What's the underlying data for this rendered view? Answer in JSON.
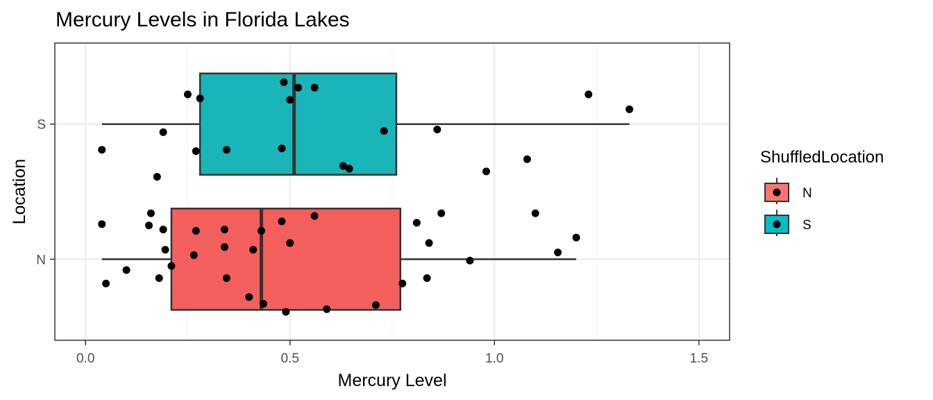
{
  "chart_data": {
    "type": "boxplot",
    "title": "Mercury Levels in Florida Lakes",
    "xlabel": "Mercury Level",
    "ylabel": "Location",
    "xlim": [
      -0.075,
      1.575
    ],
    "x_ticks": [
      "0.0",
      "0.5",
      "1.0",
      "1.5"
    ],
    "x_tick_values": [
      0,
      0.5,
      1.0,
      1.5
    ],
    "categories": [
      "N",
      "S"
    ],
    "grid": true,
    "legend": {
      "title": "ShuffledLocation",
      "placement": "right",
      "entries": [
        {
          "label": "N",
          "color": "#f8766d"
        },
        {
          "label": "S",
          "color": "#00bfc4"
        }
      ]
    },
    "boxes": [
      {
        "category": "N",
        "fill": "#f25f5c",
        "whisker_low": 0.04,
        "q1": 0.21,
        "median": 0.43,
        "q3": 0.77,
        "whisker_high": 1.2
      },
      {
        "category": "S",
        "fill": "#19b5b8",
        "whisker_low": 0.04,
        "q1": 0.28,
        "median": 0.51,
        "q3": 0.76,
        "whisker_high": 1.33
      }
    ],
    "points": [
      {
        "x": 0.05,
        "y": -0.18,
        "group": "N"
      },
      {
        "x": 0.1,
        "y": -0.08,
        "group": "N"
      },
      {
        "x": 0.04,
        "y": 0.26,
        "group": "N"
      },
      {
        "x": 0.16,
        "y": 0.34,
        "group": "N"
      },
      {
        "x": 0.155,
        "y": 0.25,
        "group": "N"
      },
      {
        "x": 0.19,
        "y": 0.22,
        "group": "N"
      },
      {
        "x": 0.195,
        "y": 0.07,
        "group": "N"
      },
      {
        "x": 0.18,
        "y": -0.14,
        "group": "N"
      },
      {
        "x": 0.21,
        "y": -0.05,
        "group": "N"
      },
      {
        "x": 0.27,
        "y": 0.21,
        "group": "N"
      },
      {
        "x": 0.265,
        "y": 0.03,
        "group": "N"
      },
      {
        "x": 0.34,
        "y": 0.22,
        "group": "N"
      },
      {
        "x": 0.34,
        "y": 0.09,
        "group": "N"
      },
      {
        "x": 0.345,
        "y": -0.14,
        "group": "N"
      },
      {
        "x": 0.41,
        "y": 0.07,
        "group": "N"
      },
      {
        "x": 0.43,
        "y": 0.21,
        "group": "N"
      },
      {
        "x": 0.4,
        "y": -0.28,
        "group": "N"
      },
      {
        "x": 0.435,
        "y": -0.33,
        "group": "N"
      },
      {
        "x": 0.48,
        "y": 0.28,
        "group": "N"
      },
      {
        "x": 0.5,
        "y": 0.12,
        "group": "N"
      },
      {
        "x": 0.49,
        "y": -0.39,
        "group": "N"
      },
      {
        "x": 0.56,
        "y": 0.32,
        "group": "N"
      },
      {
        "x": 0.59,
        "y": -0.37,
        "group": "N"
      },
      {
        "x": 0.71,
        "y": -0.34,
        "group": "N"
      },
      {
        "x": 0.775,
        "y": -0.18,
        "group": "N"
      },
      {
        "x": 0.81,
        "y": 0.27,
        "group": "N"
      },
      {
        "x": 0.84,
        "y": 0.12,
        "group": "N"
      },
      {
        "x": 0.835,
        "y": -0.14,
        "group": "N"
      },
      {
        "x": 0.87,
        "y": 0.34,
        "group": "N"
      },
      {
        "x": 0.94,
        "y": -0.01,
        "group": "N"
      },
      {
        "x": 1.1,
        "y": 0.34,
        "group": "N"
      },
      {
        "x": 1.155,
        "y": 0.05,
        "group": "N"
      },
      {
        "x": 1.2,
        "y": 0.16,
        "group": "N"
      },
      {
        "x": 0.04,
        "y": 0.81,
        "group": "S"
      },
      {
        "x": 0.175,
        "y": 0.61,
        "group": "S"
      },
      {
        "x": 0.19,
        "y": 0.94,
        "group": "S"
      },
      {
        "x": 0.25,
        "y": 1.22,
        "group": "S"
      },
      {
        "x": 0.28,
        "y": 1.19,
        "group": "S"
      },
      {
        "x": 0.27,
        "y": 0.8,
        "group": "S"
      },
      {
        "x": 0.345,
        "y": 0.81,
        "group": "S"
      },
      {
        "x": 0.48,
        "y": 0.82,
        "group": "S"
      },
      {
        "x": 0.485,
        "y": 1.31,
        "group": "S"
      },
      {
        "x": 0.5,
        "y": 1.18,
        "group": "S"
      },
      {
        "x": 0.52,
        "y": 1.27,
        "group": "S"
      },
      {
        "x": 0.56,
        "y": 1.27,
        "group": "S"
      },
      {
        "x": 0.63,
        "y": 0.69,
        "group": "S"
      },
      {
        "x": 0.645,
        "y": 0.67,
        "group": "S"
      },
      {
        "x": 0.73,
        "y": 0.95,
        "group": "S"
      },
      {
        "x": 0.86,
        "y": 0.96,
        "group": "S"
      },
      {
        "x": 0.98,
        "y": 0.65,
        "group": "S"
      },
      {
        "x": 1.08,
        "y": 0.74,
        "group": "S"
      },
      {
        "x": 1.23,
        "y": 1.22,
        "group": "S"
      },
      {
        "x": 1.33,
        "y": 1.11,
        "group": "S"
      }
    ]
  }
}
